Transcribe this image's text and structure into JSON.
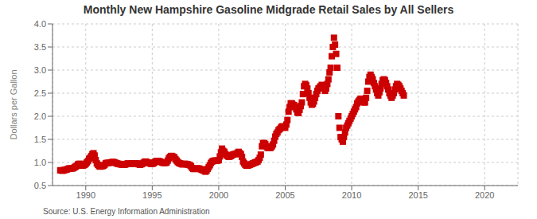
{
  "chart_data": {
    "type": "scatter",
    "title": "Monthly New Hampshire Gasoline Midgrade Retail Sales by All Sellers",
    "ylabel": "Dollars per Gallon",
    "annotations": [
      "Source: U.S. Energy Information Administration"
    ],
    "color": "#cc0000",
    "marker": "square",
    "grid": true,
    "xlim": [
      1987.5,
      2022.5
    ],
    "ylim": [
      0.5,
      4.0
    ],
    "xticks": [
      1990,
      1995,
      2000,
      2005,
      2010,
      2015,
      2020
    ],
    "yticks": [
      0.5,
      {
        "value": 1.0,
        "label": "1.0"
      },
      1.5,
      {
        "value": 2.0,
        "label": "2.0"
      },
      2.5,
      {
        "value": 3.0,
        "label": "3.0"
      },
      3.5,
      {
        "value": 4.0,
        "label": "4.0"
      }
    ],
    "x": [
      1988.083,
      1988.167,
      1988.25,
      1988.333,
      1988.417,
      1988.5,
      1988.583,
      1988.667,
      1988.75,
      1988.833,
      1988.917,
      1989.0,
      1989.083,
      1989.167,
      1989.25,
      1989.333,
      1989.417,
      1989.5,
      1989.583,
      1989.667,
      1989.75,
      1989.833,
      1989.917,
      1990.0,
      1990.083,
      1990.167,
      1990.25,
      1990.333,
      1990.417,
      1990.5,
      1990.583,
      1990.667,
      1990.75,
      1990.833,
      1990.917,
      1991.0,
      1991.083,
      1991.167,
      1991.25,
      1991.333,
      1991.417,
      1991.5,
      1991.583,
      1991.667,
      1991.75,
      1991.833,
      1991.917,
      1992.0,
      1992.083,
      1992.167,
      1992.25,
      1992.333,
      1992.417,
      1992.5,
      1992.583,
      1992.667,
      1992.75,
      1992.833,
      1992.917,
      1993.0,
      1993.083,
      1993.167,
      1993.25,
      1993.333,
      1993.417,
      1993.5,
      1993.583,
      1993.667,
      1993.75,
      1993.833,
      1993.917,
      1994.0,
      1994.083,
      1994.167,
      1994.25,
      1994.333,
      1994.417,
      1994.5,
      1994.583,
      1994.667,
      1994.75,
      1994.833,
      1994.917,
      1995.0,
      1995.083,
      1995.167,
      1995.25,
      1995.333,
      1995.417,
      1995.5,
      1995.583,
      1995.667,
      1995.75,
      1995.833,
      1995.917,
      1996.0,
      1996.083,
      1996.167,
      1996.25,
      1996.333,
      1996.417,
      1996.5,
      1996.583,
      1996.667,
      1996.75,
      1996.833,
      1996.917,
      1997.0,
      1997.083,
      1997.167,
      1997.25,
      1997.333,
      1997.417,
      1997.5,
      1997.583,
      1997.667,
      1997.75,
      1997.833,
      1997.917,
      1998.0,
      1998.083,
      1998.167,
      1998.25,
      1998.333,
      1998.417,
      1998.5,
      1998.583,
      1998.667,
      1998.75,
      1998.833,
      1998.917,
      1999.0,
      1999.083,
      1999.167,
      1999.25,
      1999.333,
      1999.417,
      1999.5,
      1999.583,
      1999.667,
      1999.75,
      1999.833,
      1999.917,
      2000.0,
      2000.083,
      2000.167,
      2000.25,
      2000.333,
      2000.417,
      2000.5,
      2000.583,
      2000.667,
      2000.75,
      2000.833,
      2000.917,
      2001.0,
      2001.083,
      2001.167,
      2001.25,
      2001.333,
      2001.417,
      2001.5,
      2001.583,
      2001.667,
      2001.75,
      2001.833,
      2001.917,
      2002.0,
      2002.083,
      2002.167,
      2002.25,
      2002.333,
      2002.417,
      2002.5,
      2002.583,
      2002.667,
      2002.75,
      2002.833,
      2002.917,
      2003.0,
      2003.083,
      2003.167,
      2003.25,
      2003.333,
      2003.417,
      2003.5,
      2003.583,
      2003.667,
      2003.75,
      2003.833,
      2003.917,
      2004.0,
      2004.083,
      2004.167,
      2004.25,
      2004.333,
      2004.417,
      2004.5,
      2004.583,
      2004.667,
      2004.75,
      2004.833,
      2004.917,
      2005.0,
      2005.083,
      2005.167,
      2005.25,
      2005.333,
      2005.417,
      2005.5,
      2005.583,
      2005.667,
      2005.75,
      2005.833,
      2005.917,
      2006.0,
      2006.083,
      2006.167,
      2006.25,
      2006.333,
      2006.417,
      2006.5,
      2006.583,
      2006.667,
      2006.75,
      2006.833,
      2006.917,
      2007.0,
      2007.083,
      2007.167,
      2007.25,
      2007.333,
      2007.417,
      2007.5,
      2007.583,
      2007.667,
      2007.75,
      2007.833,
      2007.917,
      2008.0,
      2008.083,
      2008.167,
      2008.25,
      2008.333,
      2008.417,
      2008.5,
      2008.583,
      2008.667,
      2008.75,
      2008.833,
      2008.917,
      2009.0,
      2009.083,
      2009.167,
      2009.25,
      2009.333,
      2009.417,
      2009.5,
      2009.583,
      2009.667,
      2009.75,
      2009.833,
      2009.917,
      2010.0,
      2010.083,
      2010.167,
      2010.25,
      2010.333,
      2010.417,
      2010.5,
      2010.583,
      2010.667,
      2010.75,
      2010.833,
      2010.917,
      2011.0,
      2011.083,
      2011.167,
      2011.25,
      2011.333,
      2011.417,
      2011.5,
      2011.583,
      2011.667,
      2011.75,
      2011.833,
      2011.917,
      2012.0,
      2012.083,
      2012.167,
      2012.25,
      2012.333,
      2012.417,
      2012.5,
      2012.583,
      2012.667,
      2012.75,
      2012.833,
      2012.917,
      2013.0,
      2013.083,
      2013.167,
      2013.25,
      2013.333,
      2013.417,
      2013.5,
      2013.583,
      2013.667,
      2013.75,
      2013.833,
      2013.917
    ],
    "values": [
      0.83,
      0.83,
      0.82,
      0.83,
      0.84,
      0.84,
      0.85,
      0.86,
      0.87,
      0.87,
      0.87,
      0.87,
      0.88,
      0.9,
      0.91,
      0.93,
      0.96,
      0.97,
      0.97,
      0.94,
      0.93,
      0.94,
      0.95,
      0.97,
      1.0,
      1.03,
      1.08,
      1.1,
      1.14,
      1.18,
      1.2,
      1.15,
      1.05,
      0.98,
      0.95,
      0.92,
      0.91,
      0.92,
      0.92,
      0.93,
      0.95,
      0.98,
      0.99,
      0.99,
      0.99,
      1.0,
      1.0,
      1.01,
      1.01,
      1.0,
      0.99,
      0.98,
      0.97,
      0.97,
      0.96,
      0.96,
      0.95,
      0.95,
      0.95,
      0.96,
      0.97,
      0.98,
      0.97,
      0.97,
      0.97,
      0.98,
      0.98,
      0.98,
      0.98,
      0.98,
      0.97,
      0.96,
      0.95,
      0.96,
      0.97,
      0.99,
      1.01,
      1.02,
      1.01,
      1.0,
      0.99,
      0.98,
      0.97,
      0.97,
      0.98,
      1.0,
      1.02,
      1.03,
      1.03,
      1.03,
      1.02,
      1.01,
      1.0,
      0.99,
      0.99,
      0.99,
      1.0,
      1.04,
      1.09,
      1.12,
      1.14,
      1.14,
      1.12,
      1.11,
      1.07,
      1.04,
      1.01,
      0.99,
      0.98,
      0.97,
      0.96,
      0.96,
      0.97,
      0.97,
      0.96,
      0.96,
      0.95,
      0.94,
      0.92,
      0.88,
      0.86,
      0.86,
      0.86,
      0.87,
      0.87,
      0.87,
      0.86,
      0.85,
      0.84,
      0.83,
      0.82,
      0.8,
      0.82,
      0.86,
      0.9,
      0.94,
      0.99,
      1.02,
      1.03,
      1.04,
      1.04,
      1.04,
      1.04,
      1.05,
      1.13,
      1.22,
      1.3,
      1.25,
      1.23,
      1.18,
      1.16,
      1.14,
      1.12,
      1.13,
      1.14,
      1.16,
      1.17,
      1.18,
      1.18,
      1.19,
      1.21,
      1.23,
      1.2,
      1.18,
      1.12,
      1.02,
      0.98,
      0.95,
      0.93,
      0.93,
      0.94,
      0.95,
      0.96,
      0.97,
      0.98,
      0.99,
      1.0,
      1.01,
      1.02,
      1.05,
      1.1,
      1.17,
      1.35,
      1.42,
      1.42,
      1.4,
      1.35,
      1.32,
      1.31,
      1.31,
      1.32,
      1.35,
      1.39,
      1.47,
      1.56,
      1.62,
      1.65,
      1.7,
      1.72,
      1.75,
      1.78,
      1.78,
      1.76,
      1.75,
      1.82,
      1.92,
      2.1,
      2.2,
      2.28,
      2.28,
      2.25,
      2.24,
      2.2,
      2.15,
      2.08,
      2.07,
      2.14,
      2.22,
      2.3,
      2.48,
      2.65,
      2.7,
      2.67,
      2.6,
      2.5,
      2.4,
      2.3,
      2.25,
      2.27,
      2.32,
      2.4,
      2.48,
      2.55,
      2.6,
      2.62,
      2.65,
      2.68,
      2.65,
      2.6,
      2.55,
      2.6,
      2.7,
      2.8,
      2.95,
      3.05,
      3.3,
      3.5,
      3.7,
      3.55,
      3.35,
      3.05,
      2.0,
      1.75,
      1.55,
      1.5,
      1.45,
      1.55,
      1.65,
      1.75,
      1.8,
      1.85,
      1.9,
      1.95,
      2.0,
      2.05,
      2.1,
      2.15,
      2.2,
      2.28,
      2.32,
      2.35,
      2.38,
      2.35,
      2.32,
      2.3,
      2.3,
      2.4,
      2.55,
      2.75,
      2.85,
      2.9,
      2.85,
      2.8,
      2.72,
      2.65,
      2.58,
      2.5,
      2.45,
      2.52,
      2.6,
      2.7,
      2.78,
      2.8,
      2.78,
      2.72,
      2.65,
      2.58,
      2.5,
      2.45,
      2.4,
      2.45,
      2.5,
      2.58,
      2.65,
      2.7,
      2.68,
      2.65,
      2.6,
      2.55,
      2.5,
      2.45
    ]
  }
}
